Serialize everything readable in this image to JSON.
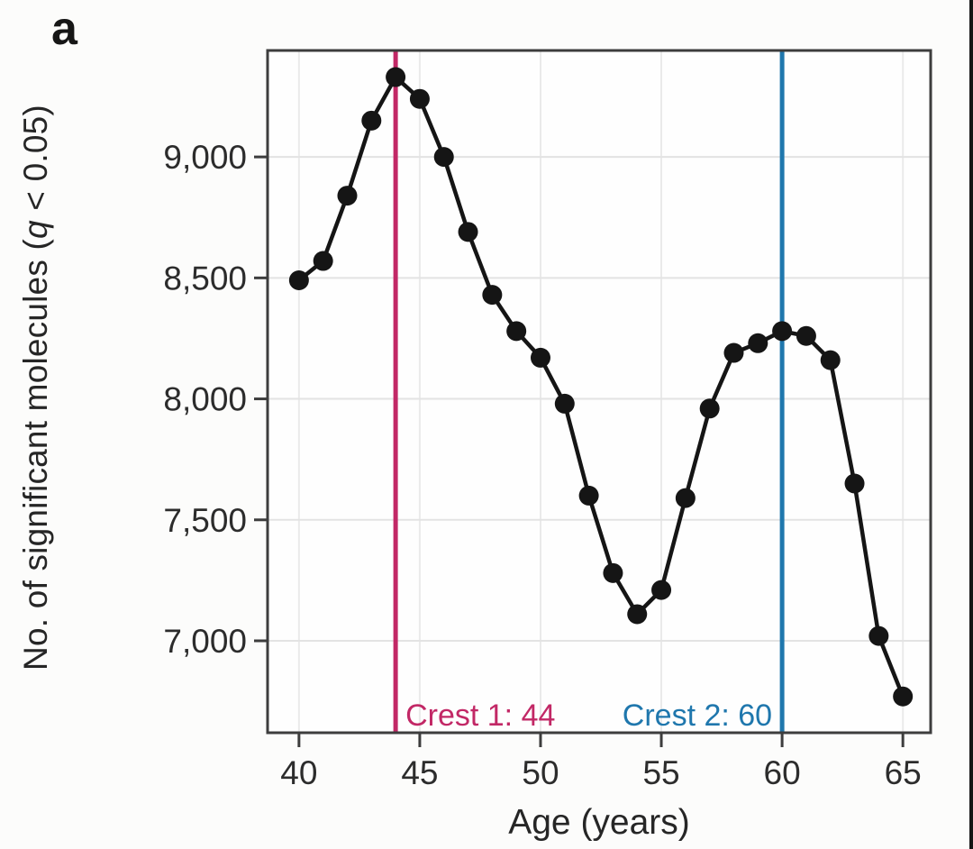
{
  "panel": {
    "label": "a"
  },
  "colors": {
    "crest1": "#c22866",
    "crest2": "#1f77ad",
    "line": "#151515",
    "marker": "#151515",
    "border": "#3d3d3d",
    "grid_h": "#e3e3e3",
    "grid_v": "#eaeaea",
    "tick": "#3d3d3d",
    "text": "#2c2c2c",
    "plot_bg": "#fefefe"
  },
  "chart_data": {
    "type": "line",
    "title": "",
    "xlabel": "Age (years)",
    "ylabel": "No. of significant molecules (q < 0.05)",
    "ylabel_parts": {
      "prefix": "No. of significant molecules (",
      "italic": "q",
      "suffix": " < 0.05)"
    },
    "x": [
      40,
      41,
      42,
      43,
      44,
      45,
      46,
      47,
      48,
      49,
      50,
      51,
      52,
      53,
      54,
      55,
      56,
      57,
      58,
      59,
      60,
      61,
      62,
      63,
      64,
      65
    ],
    "y": [
      8490,
      8570,
      8840,
      9150,
      9330,
      9240,
      9000,
      8690,
      8430,
      8280,
      8170,
      7980,
      7600,
      7280,
      7110,
      7210,
      7590,
      7960,
      8190,
      8230,
      8280,
      8260,
      8160,
      7650,
      7020,
      6770
    ],
    "xticks": [
      40,
      45,
      50,
      55,
      60,
      65
    ],
    "xtick_labels": [
      "40",
      "45",
      "50",
      "55",
      "60",
      "65"
    ],
    "yticks": [
      7000,
      7500,
      8000,
      8500,
      9000
    ],
    "ytick_labels": [
      "7,000",
      "7,500",
      "8,000",
      "8,500",
      "9,000"
    ],
    "xlim": [
      38.7,
      66.15
    ],
    "ylim": [
      6620,
      9440
    ],
    "grid": true,
    "legend": "none",
    "annotations": [
      {
        "type": "vline",
        "name": "crest1",
        "x": 44,
        "label": "Crest 1: 44",
        "label_side": "right",
        "color_key": "crest1"
      },
      {
        "type": "vline",
        "name": "crest2",
        "x": 60,
        "label": "Crest 2: 60",
        "label_side": "left",
        "color_key": "crest2"
      }
    ]
  }
}
